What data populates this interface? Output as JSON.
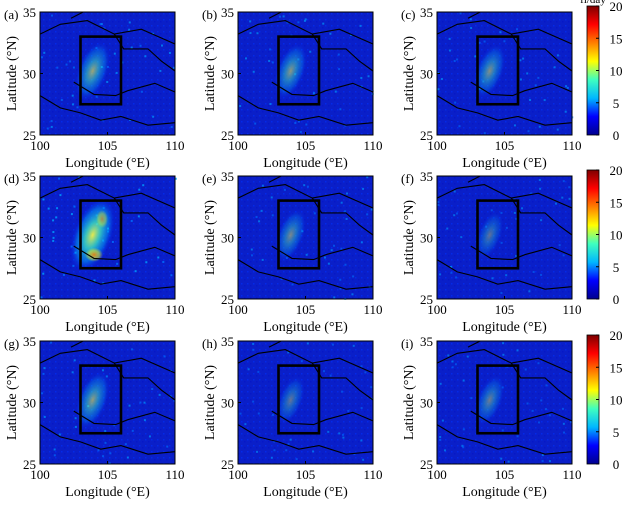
{
  "chart_data": {
    "type": "heatmap",
    "colorbar": {
      "unit": "fl/day",
      "range": [
        0,
        20
      ],
      "ticks": [
        "0",
        "5",
        "10",
        "15",
        "20"
      ],
      "colors": [
        "#00008f",
        "#0000ff",
        "#00b7ff",
        "#3fffbf",
        "#ffff00",
        "#ff7f00",
        "#ff0000",
        "#7f0000"
      ]
    },
    "xlabel": "Longitude (°E)",
    "ylabel": "Latitude (°N)",
    "xlim": [
      100,
      110
    ],
    "ylim": [
      25,
      35
    ],
    "xticks": [
      "100",
      "105",
      "110"
    ],
    "yticks": [
      "25",
      "30",
      "35"
    ],
    "region_box": {
      "lon": [
        103,
        106
      ],
      "lat": [
        27.5,
        33
      ]
    },
    "panels": [
      {
        "label": "(a)",
        "intensity": 0.55
      },
      {
        "label": "(b)",
        "intensity": 0.45
      },
      {
        "label": "(c)",
        "intensity": 0.4
      },
      {
        "label": "(d)",
        "intensity": 1.0
      },
      {
        "label": "(e)",
        "intensity": 0.35
      },
      {
        "label": "(f)",
        "intensity": 0.2
      },
      {
        "label": "(g)",
        "intensity": 0.5
      },
      {
        "label": "(h)",
        "intensity": 0.22
      },
      {
        "label": "(i)",
        "intensity": 0.28
      }
    ]
  }
}
